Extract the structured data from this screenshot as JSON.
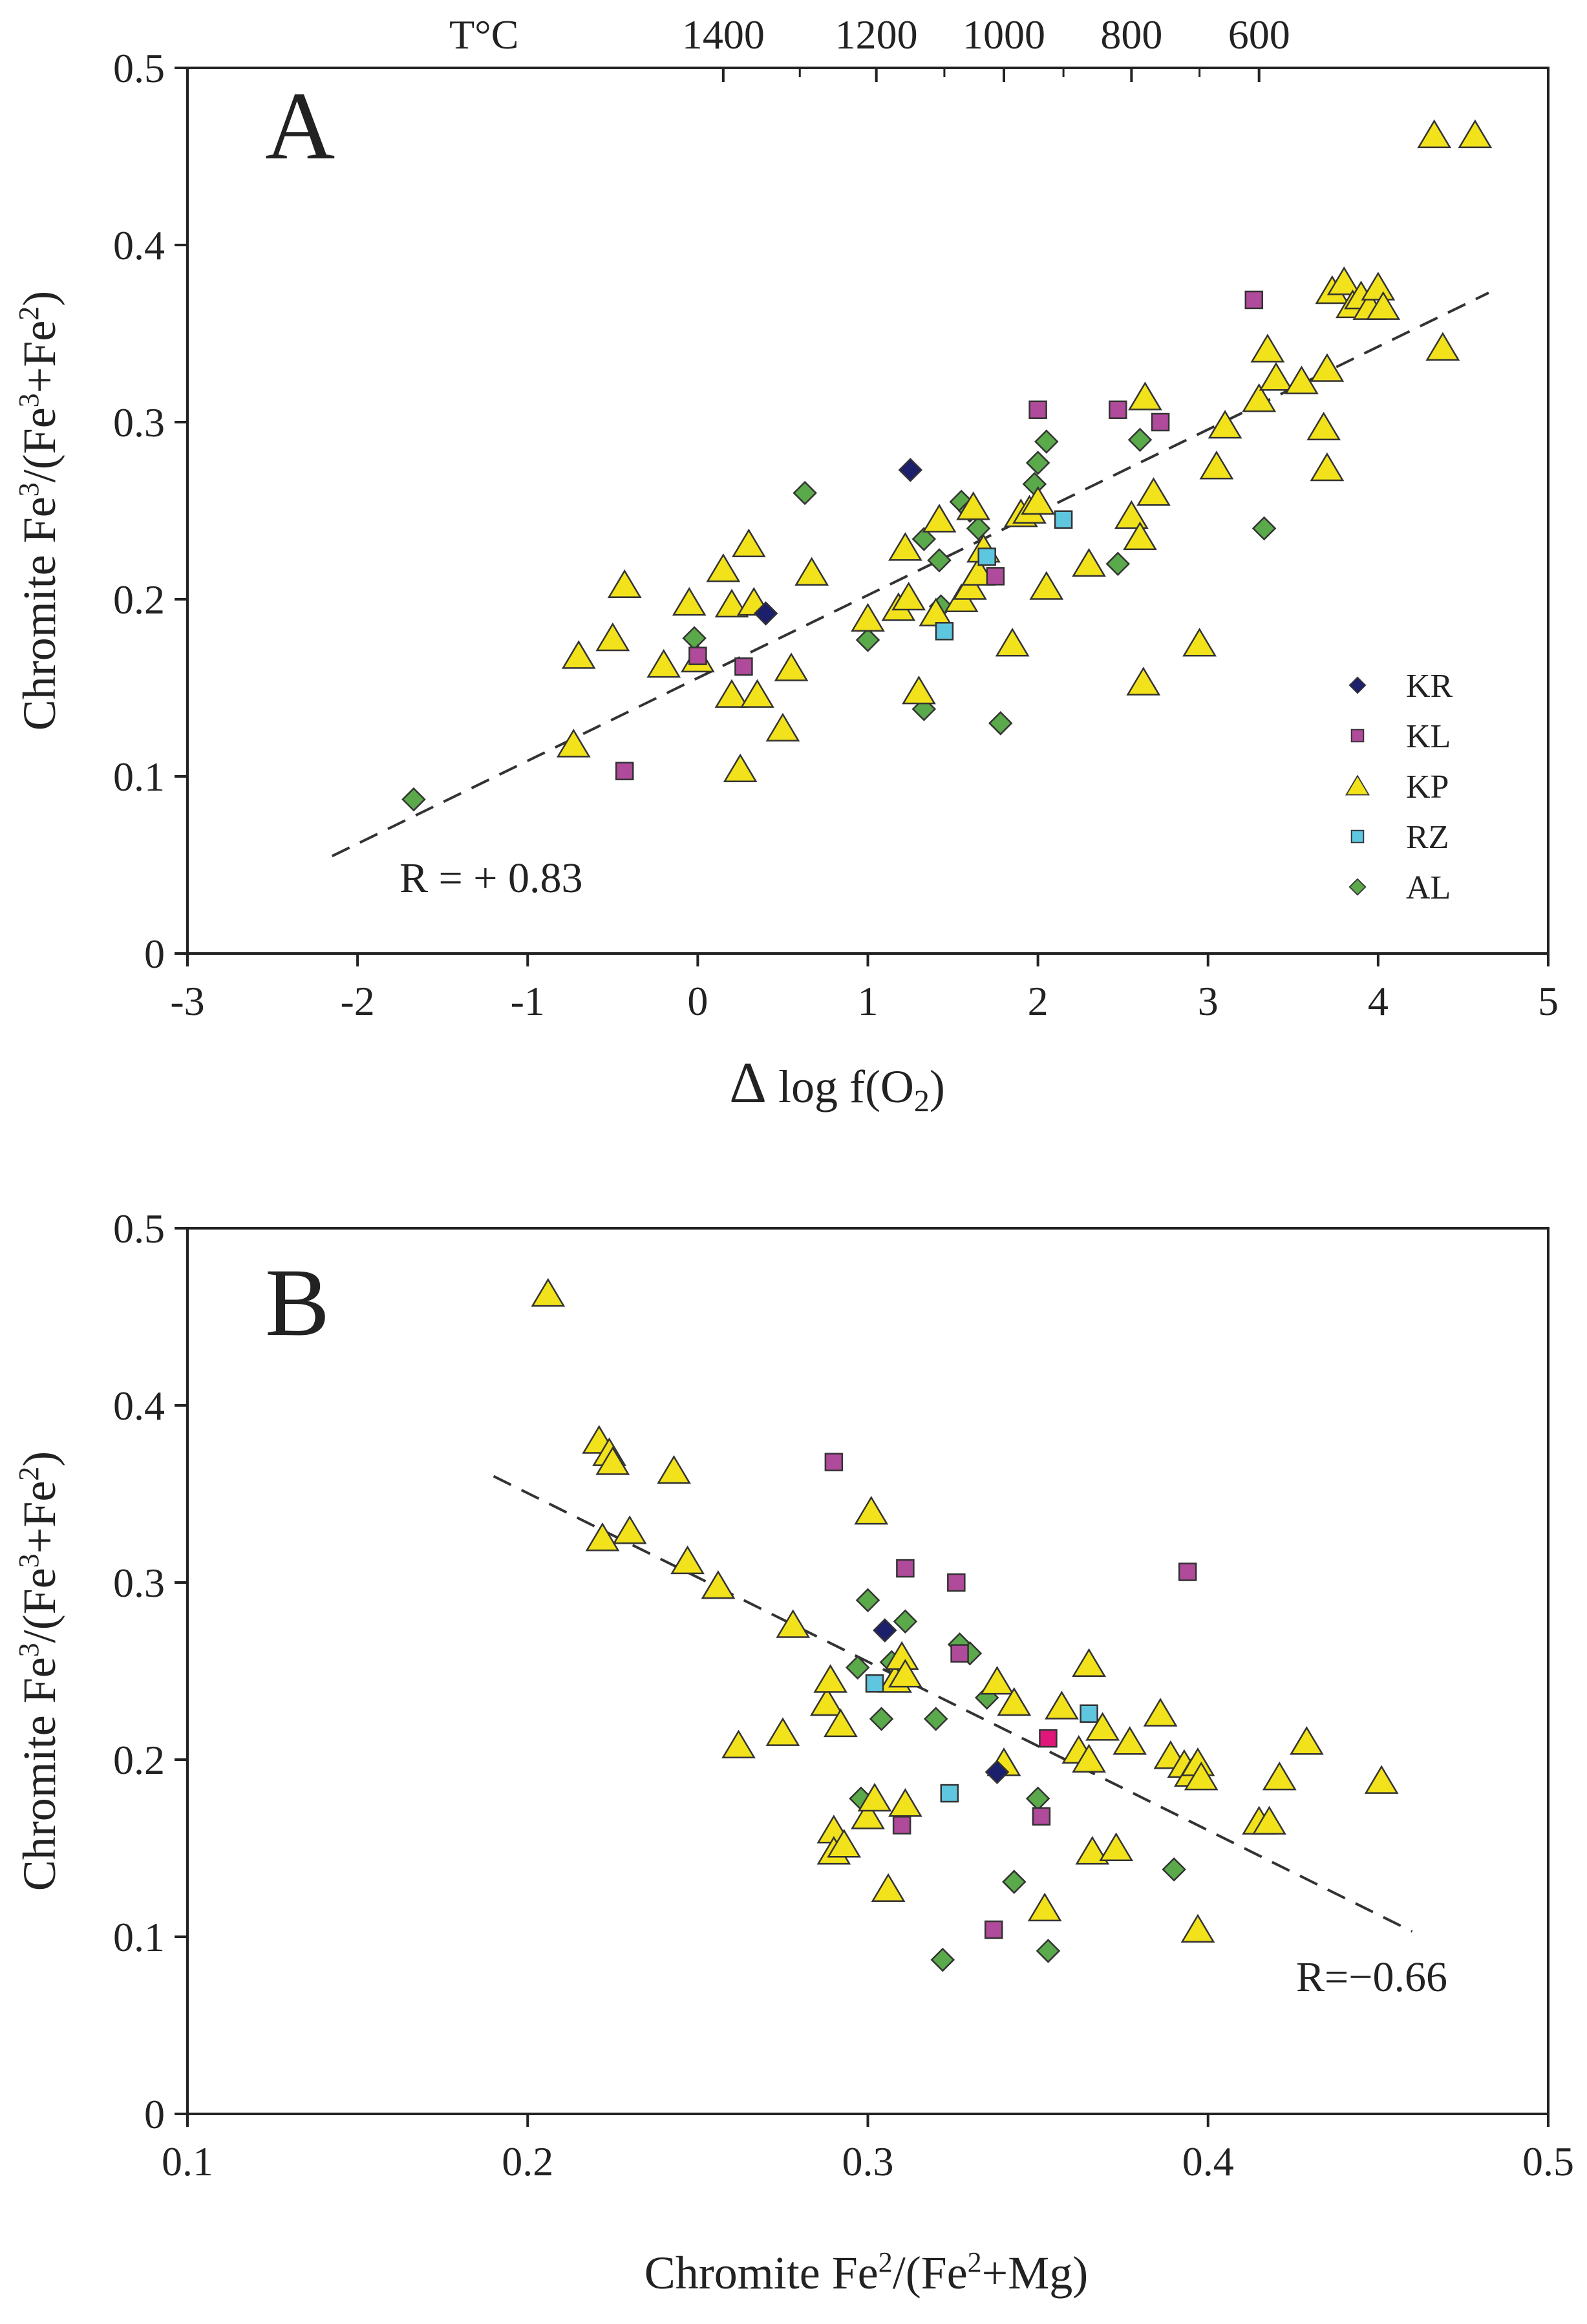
{
  "figure": {
    "legend_title": "",
    "series_names": [
      "KR",
      "KL",
      "KP",
      "RZ",
      "AL"
    ],
    "colors": {
      "KR": "#1c1f6b",
      "KL": "#b04a9a",
      "KP": "#f2e21b",
      "RZ": "#5fc6e0",
      "AL": "#5aa94a",
      "KL_highlight": "#e0177a",
      "edge": "#333333",
      "axis": "#222222"
    }
  },
  "chart_data": [
    {
      "panel": "A",
      "type": "scatter",
      "title": "",
      "xlabel": "Δ log f(O₂)",
      "ylabel": "Chromite Fe³/(Fe³+Fe²)",
      "xlim": [
        -3,
        5
      ],
      "ylim": [
        0,
        0.5
      ],
      "xticks": [
        -3,
        -2,
        -1,
        0,
        1,
        2,
        3,
        4,
        5
      ],
      "xtick_labels": [
        "-3",
        "-2",
        "-1",
        "0",
        "1",
        "2",
        "3",
        "4",
        "5"
      ],
      "yticks": [
        0,
        0.1,
        0.2,
        0.3,
        0.4,
        0.5
      ],
      "ytick_labels": [
        "0",
        "0.1",
        "0.2",
        "0.3",
        "0.4",
        "0.5"
      ],
      "top_axis": {
        "title": "T°C",
        "ticks": [
          {
            "x": 0.15,
            "label": "1400"
          },
          {
            "x": 1.05,
            "label": "1200"
          },
          {
            "x": 1.8,
            "label": "1000"
          },
          {
            "x": 2.55,
            "label": "800"
          },
          {
            "x": 3.3,
            "label": "600"
          }
        ],
        "minor_ticks": [
          0.6,
          1.45,
          2.15,
          2.95
        ]
      },
      "trendline": {
        "x": [
          -2.15,
          4.65
        ],
        "y": [
          0.055,
          0.373
        ]
      },
      "annotation": "R = + 0.83",
      "series": [
        {
          "name": "KR",
          "marker": "diamond",
          "points": [
            [
              0.4,
              0.192
            ],
            [
              1.25,
              0.273
            ]
          ]
        },
        {
          "name": "KL",
          "marker": "square",
          "points": [
            [
              -0.43,
              0.103
            ],
            [
              0.0,
              0.168
            ],
            [
              0.27,
              0.162
            ],
            [
              1.75,
              0.213
            ],
            [
              2.0,
              0.307
            ],
            [
              2.47,
              0.307
            ],
            [
              2.72,
              0.3
            ],
            [
              3.27,
              0.369
            ]
          ]
        },
        {
          "name": "KP",
          "marker": "triangle",
          "points": [
            [
              -0.73,
              0.118
            ],
            [
              -0.7,
              0.168
            ],
            [
              -0.5,
              0.178
            ],
            [
              -0.43,
              0.208
            ],
            [
              -0.2,
              0.163
            ],
            [
              -0.05,
              0.198
            ],
            [
              0.0,
              0.166
            ],
            [
              0.15,
              0.217
            ],
            [
              0.2,
              0.146
            ],
            [
              0.2,
              0.197
            ],
            [
              0.25,
              0.104
            ],
            [
              0.3,
              0.231
            ],
            [
              0.33,
              0.198
            ],
            [
              0.35,
              0.146
            ],
            [
              0.5,
              0.127
            ],
            [
              0.55,
              0.161
            ],
            [
              0.67,
              0.215
            ],
            [
              1.0,
              0.189
            ],
            [
              1.18,
              0.195
            ],
            [
              1.22,
              0.229
            ],
            [
              1.24,
              0.201
            ],
            [
              1.3,
              0.148
            ],
            [
              1.4,
              0.192
            ],
            [
              1.42,
              0.245
            ],
            [
              1.55,
              0.2
            ],
            [
              1.6,
              0.207
            ],
            [
              1.62,
              0.252
            ],
            [
              1.65,
              0.215
            ],
            [
              1.68,
              0.228
            ],
            [
              1.85,
              0.175
            ],
            [
              1.9,
              0.248
            ],
            [
              1.95,
              0.25
            ],
            [
              2.0,
              0.255
            ],
            [
              2.05,
              0.207
            ],
            [
              2.3,
              0.22
            ],
            [
              2.55,
              0.247
            ],
            [
              2.6,
              0.235
            ],
            [
              2.62,
              0.153
            ],
            [
              2.63,
              0.314
            ],
            [
              2.68,
              0.26
            ],
            [
              2.95,
              0.175
            ],
            [
              3.05,
              0.275
            ],
            [
              3.1,
              0.298
            ],
            [
              3.3,
              0.313
            ],
            [
              3.35,
              0.341
            ],
            [
              3.4,
              0.325
            ],
            [
              3.55,
              0.323
            ],
            [
              3.68,
              0.297
            ],
            [
              3.7,
              0.274
            ],
            [
              3.7,
              0.33
            ],
            [
              3.73,
              0.374
            ],
            [
              3.8,
              0.379
            ],
            [
              3.85,
              0.366
            ],
            [
              3.9,
              0.371
            ],
            [
              3.95,
              0.365
            ],
            [
              4.0,
              0.376
            ],
            [
              4.03,
              0.365
            ],
            [
              4.33,
              0.462
            ],
            [
              4.38,
              0.342
            ],
            [
              4.57,
              0.462
            ]
          ]
        },
        {
          "name": "RZ",
          "marker": "square",
          "points": [
            [
              1.45,
              0.182
            ],
            [
              1.7,
              0.224
            ],
            [
              2.15,
              0.245
            ]
          ]
        },
        {
          "name": "AL",
          "marker": "diamond",
          "points": [
            [
              -1.67,
              0.087
            ],
            [
              -0.02,
              0.178
            ],
            [
              0.63,
              0.26
            ],
            [
              1.0,
              0.177
            ],
            [
              1.33,
              0.138
            ],
            [
              1.33,
              0.234
            ],
            [
              1.42,
              0.222
            ],
            [
              1.43,
              0.196
            ],
            [
              1.55,
              0.255
            ],
            [
              1.6,
              0.25
            ],
            [
              1.65,
              0.24
            ],
            [
              1.78,
              0.13
            ],
            [
              1.98,
              0.265
            ],
            [
              2.0,
              0.277
            ],
            [
              2.05,
              0.289
            ],
            [
              2.47,
              0.22
            ],
            [
              2.6,
              0.29
            ],
            [
              3.33,
              0.24
            ]
          ]
        }
      ],
      "legend": {
        "entries": [
          "KR",
          "KL",
          "KP",
          "RZ",
          "AL"
        ],
        "placement": "lower-right"
      }
    },
    {
      "panel": "B",
      "type": "scatter",
      "title": "",
      "xlabel": "Chromite Fe²/(Fe²+Mg)",
      "ylabel": "Chromite Fe³/(Fe³+Fe²)",
      "xlim": [
        0.1,
        0.5
      ],
      "ylim": [
        0,
        0.5
      ],
      "xticks": [
        0.1,
        0.2,
        0.3,
        0.4,
        0.5
      ],
      "xtick_labels": [
        "0.1",
        "0.2",
        "0.3",
        "0.4",
        "0.5"
      ],
      "yticks": [
        0,
        0.1,
        0.2,
        0.3,
        0.4,
        0.5
      ],
      "ytick_labels": [
        "0",
        "0.1",
        "0.2",
        "0.3",
        "0.4",
        "0.5"
      ],
      "trendline": {
        "x": [
          0.19,
          0.46
        ],
        "y": [
          0.36,
          0.103
        ]
      },
      "annotation": "R=−0.66",
      "series": [
        {
          "name": "KR",
          "marker": "diamond",
          "points": [
            [
              0.305,
              0.273
            ],
            [
              0.338,
              0.193
            ]
          ]
        },
        {
          "name": "KL",
          "marker": "square",
          "points": [
            [
              0.29,
              0.368
            ],
            [
              0.31,
              0.163
            ],
            [
              0.311,
              0.308
            ],
            [
              0.326,
              0.3
            ],
            [
              0.327,
              0.26
            ],
            [
              0.337,
              0.104
            ],
            [
              0.351,
              0.168
            ],
            [
              0.394,
              0.306
            ],
            [
              0.353,
              0.212,
              "highlight"
            ]
          ]
        },
        {
          "name": "KP",
          "marker": "triangle",
          "points": [
            [
              0.206,
              0.463
            ],
            [
              0.221,
              0.38
            ],
            [
              0.224,
              0.373
            ],
            [
              0.225,
              0.368
            ],
            [
              0.222,
              0.325
            ],
            [
              0.23,
              0.329
            ],
            [
              0.243,
              0.363
            ],
            [
              0.247,
              0.312
            ],
            [
              0.256,
              0.298
            ],
            [
              0.262,
              0.208
            ],
            [
              0.275,
              0.215
            ],
            [
              0.278,
              0.276
            ],
            [
              0.288,
              0.232
            ],
            [
              0.289,
              0.245
            ],
            [
              0.29,
              0.16
            ],
            [
              0.29,
              0.148
            ],
            [
              0.292,
              0.22
            ],
            [
              0.293,
              0.152
            ],
            [
              0.3,
              0.168
            ],
            [
              0.301,
              0.34
            ],
            [
              0.302,
              0.178
            ],
            [
              0.306,
              0.127
            ],
            [
              0.308,
              0.245
            ],
            [
              0.31,
              0.258
            ],
            [
              0.311,
              0.248
            ],
            [
              0.311,
              0.175
            ],
            [
              0.338,
              0.244
            ],
            [
              0.34,
              0.198
            ],
            [
              0.343,
              0.232
            ],
            [
              0.352,
              0.116
            ],
            [
              0.357,
              0.23
            ],
            [
              0.362,
              0.205
            ],
            [
              0.365,
              0.254
            ],
            [
              0.365,
              0.2
            ],
            [
              0.366,
              0.148
            ],
            [
              0.369,
              0.218
            ],
            [
              0.373,
              0.15
            ],
            [
              0.377,
              0.21
            ],
            [
              0.386,
              0.226
            ],
            [
              0.389,
              0.202
            ],
            [
              0.393,
              0.197
            ],
            [
              0.395,
              0.192
            ],
            [
              0.397,
              0.198
            ],
            [
              0.398,
              0.19
            ],
            [
              0.397,
              0.104
            ],
            [
              0.415,
              0.165
            ],
            [
              0.418,
              0.165
            ],
            [
              0.421,
              0.19
            ],
            [
              0.429,
              0.21
            ],
            [
              0.451,
              0.188
            ]
          ]
        },
        {
          "name": "RZ",
          "marker": "square",
          "points": [
            [
              0.302,
              0.243
            ],
            [
              0.324,
              0.181
            ],
            [
              0.365,
              0.226
            ]
          ]
        },
        {
          "name": "AL",
          "marker": "diamond",
          "points": [
            [
              0.297,
              0.252
            ],
            [
              0.298,
              0.178
            ],
            [
              0.3,
              0.29
            ],
            [
              0.304,
              0.223
            ],
            [
              0.307,
              0.255
            ],
            [
              0.311,
              0.278
            ],
            [
              0.32,
              0.223
            ],
            [
              0.322,
              0.087
            ],
            [
              0.327,
              0.265
            ],
            [
              0.33,
              0.26
            ],
            [
              0.335,
              0.235
            ],
            [
              0.343,
              0.131
            ],
            [
              0.35,
              0.178
            ],
            [
              0.353,
              0.092
            ],
            [
              0.39,
              0.138
            ]
          ]
        }
      ]
    }
  ]
}
